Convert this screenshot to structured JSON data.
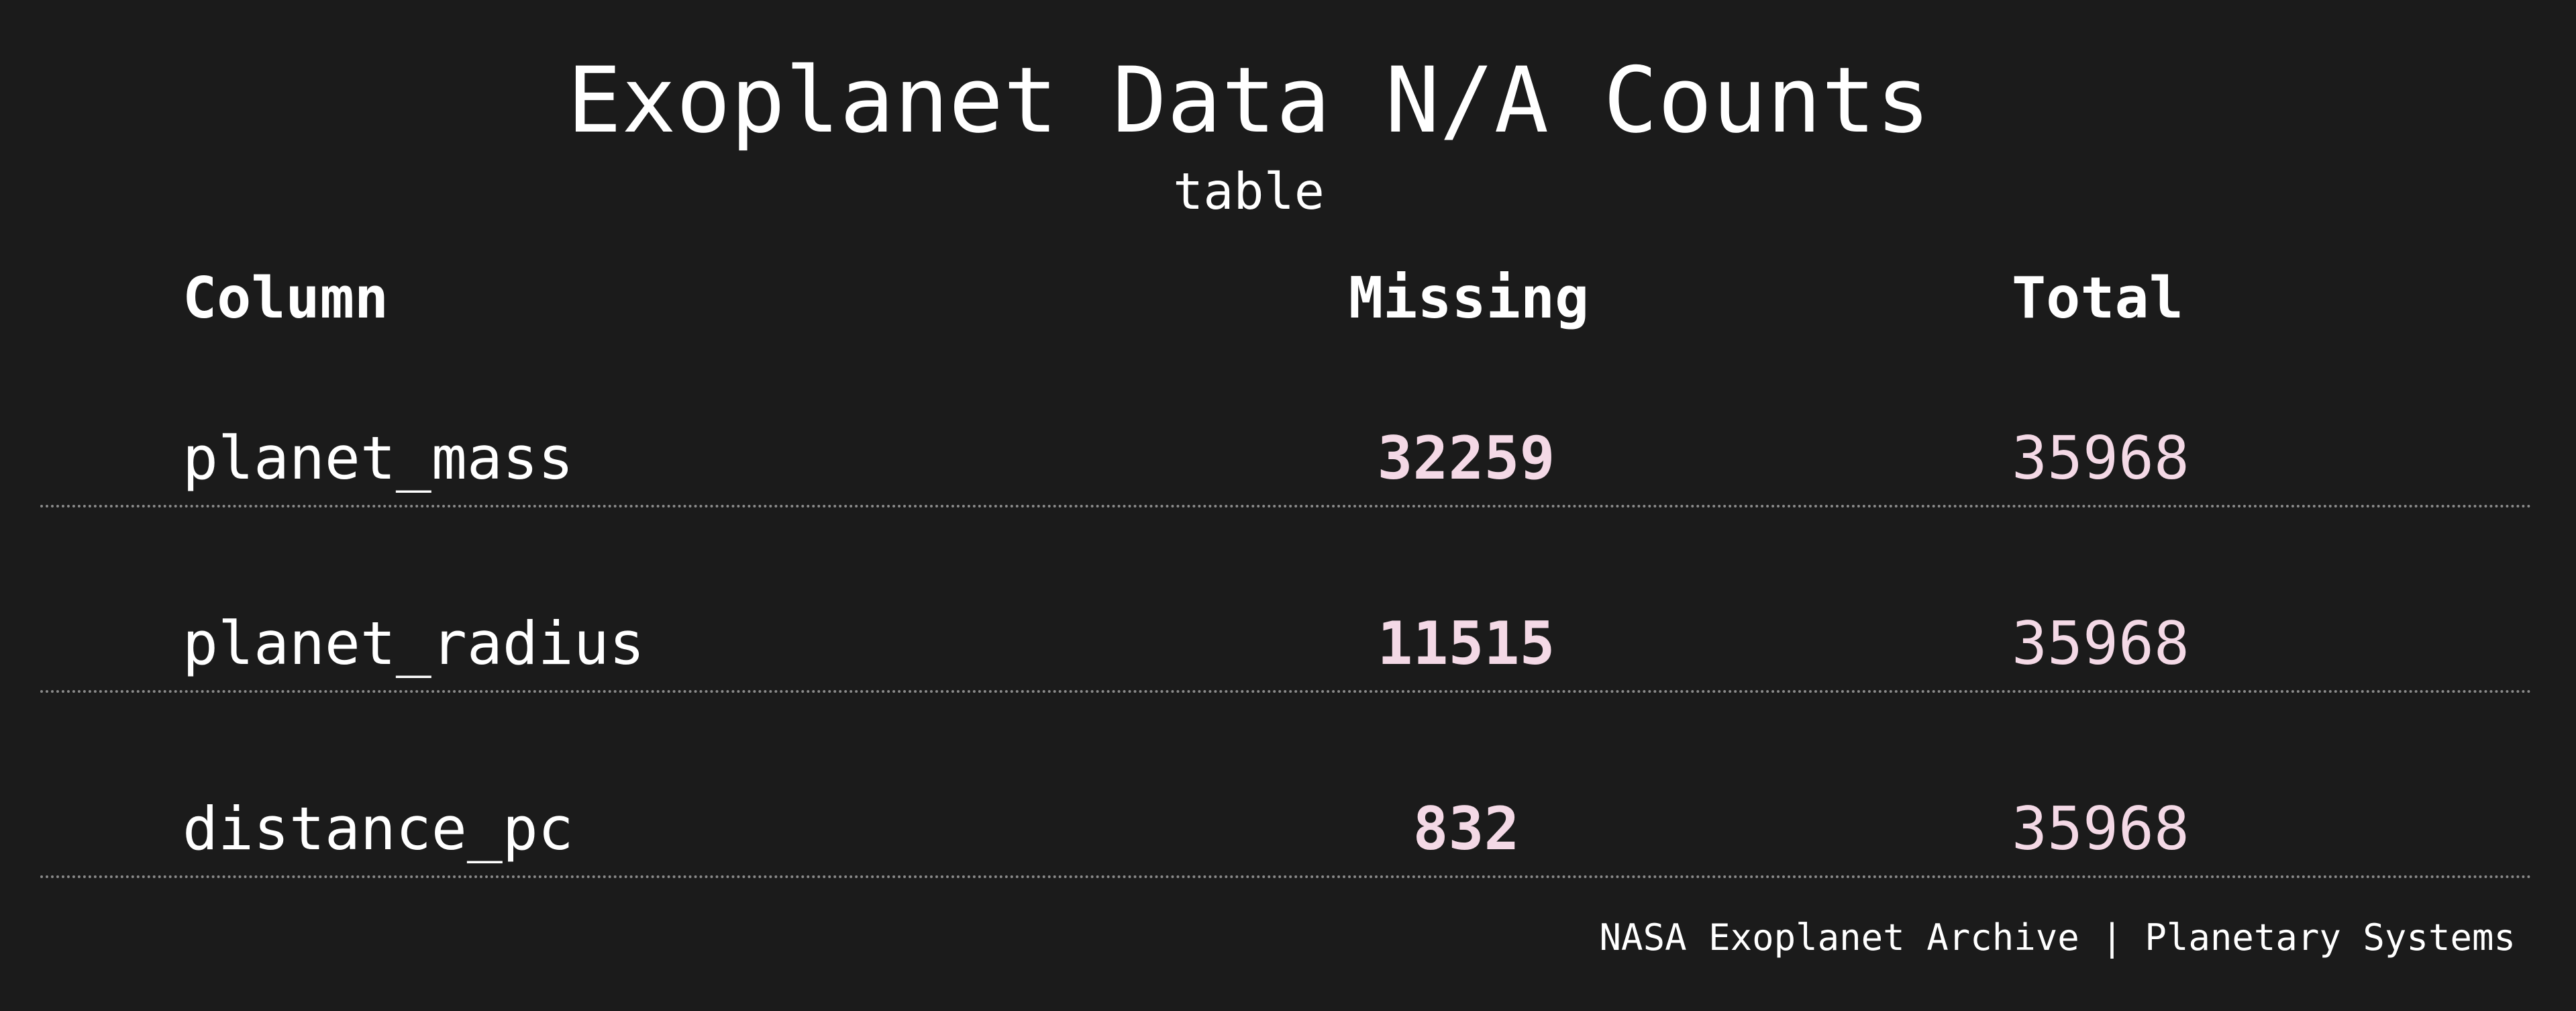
{
  "chart_data": {
    "type": "table",
    "title": "Exoplanet Data N/A Counts",
    "subtitle": "table",
    "columns": [
      "Column",
      "Missing",
      "Total"
    ],
    "rows": [
      {
        "column": "planet_mass",
        "missing": "32259",
        "total": "35968"
      },
      {
        "column": "planet_radius",
        "missing": "11515",
        "total": "35968"
      },
      {
        "column": "distance_pc",
        "missing": "832",
        "total": "35968"
      }
    ],
    "footer": "NASA Exoplanet Archive | Planetary Systems",
    "colors": {
      "background": "#1b1b1b",
      "text": "#ffffff",
      "value_accent": "#f4d9e6",
      "divider": "#8a8a8a"
    }
  }
}
